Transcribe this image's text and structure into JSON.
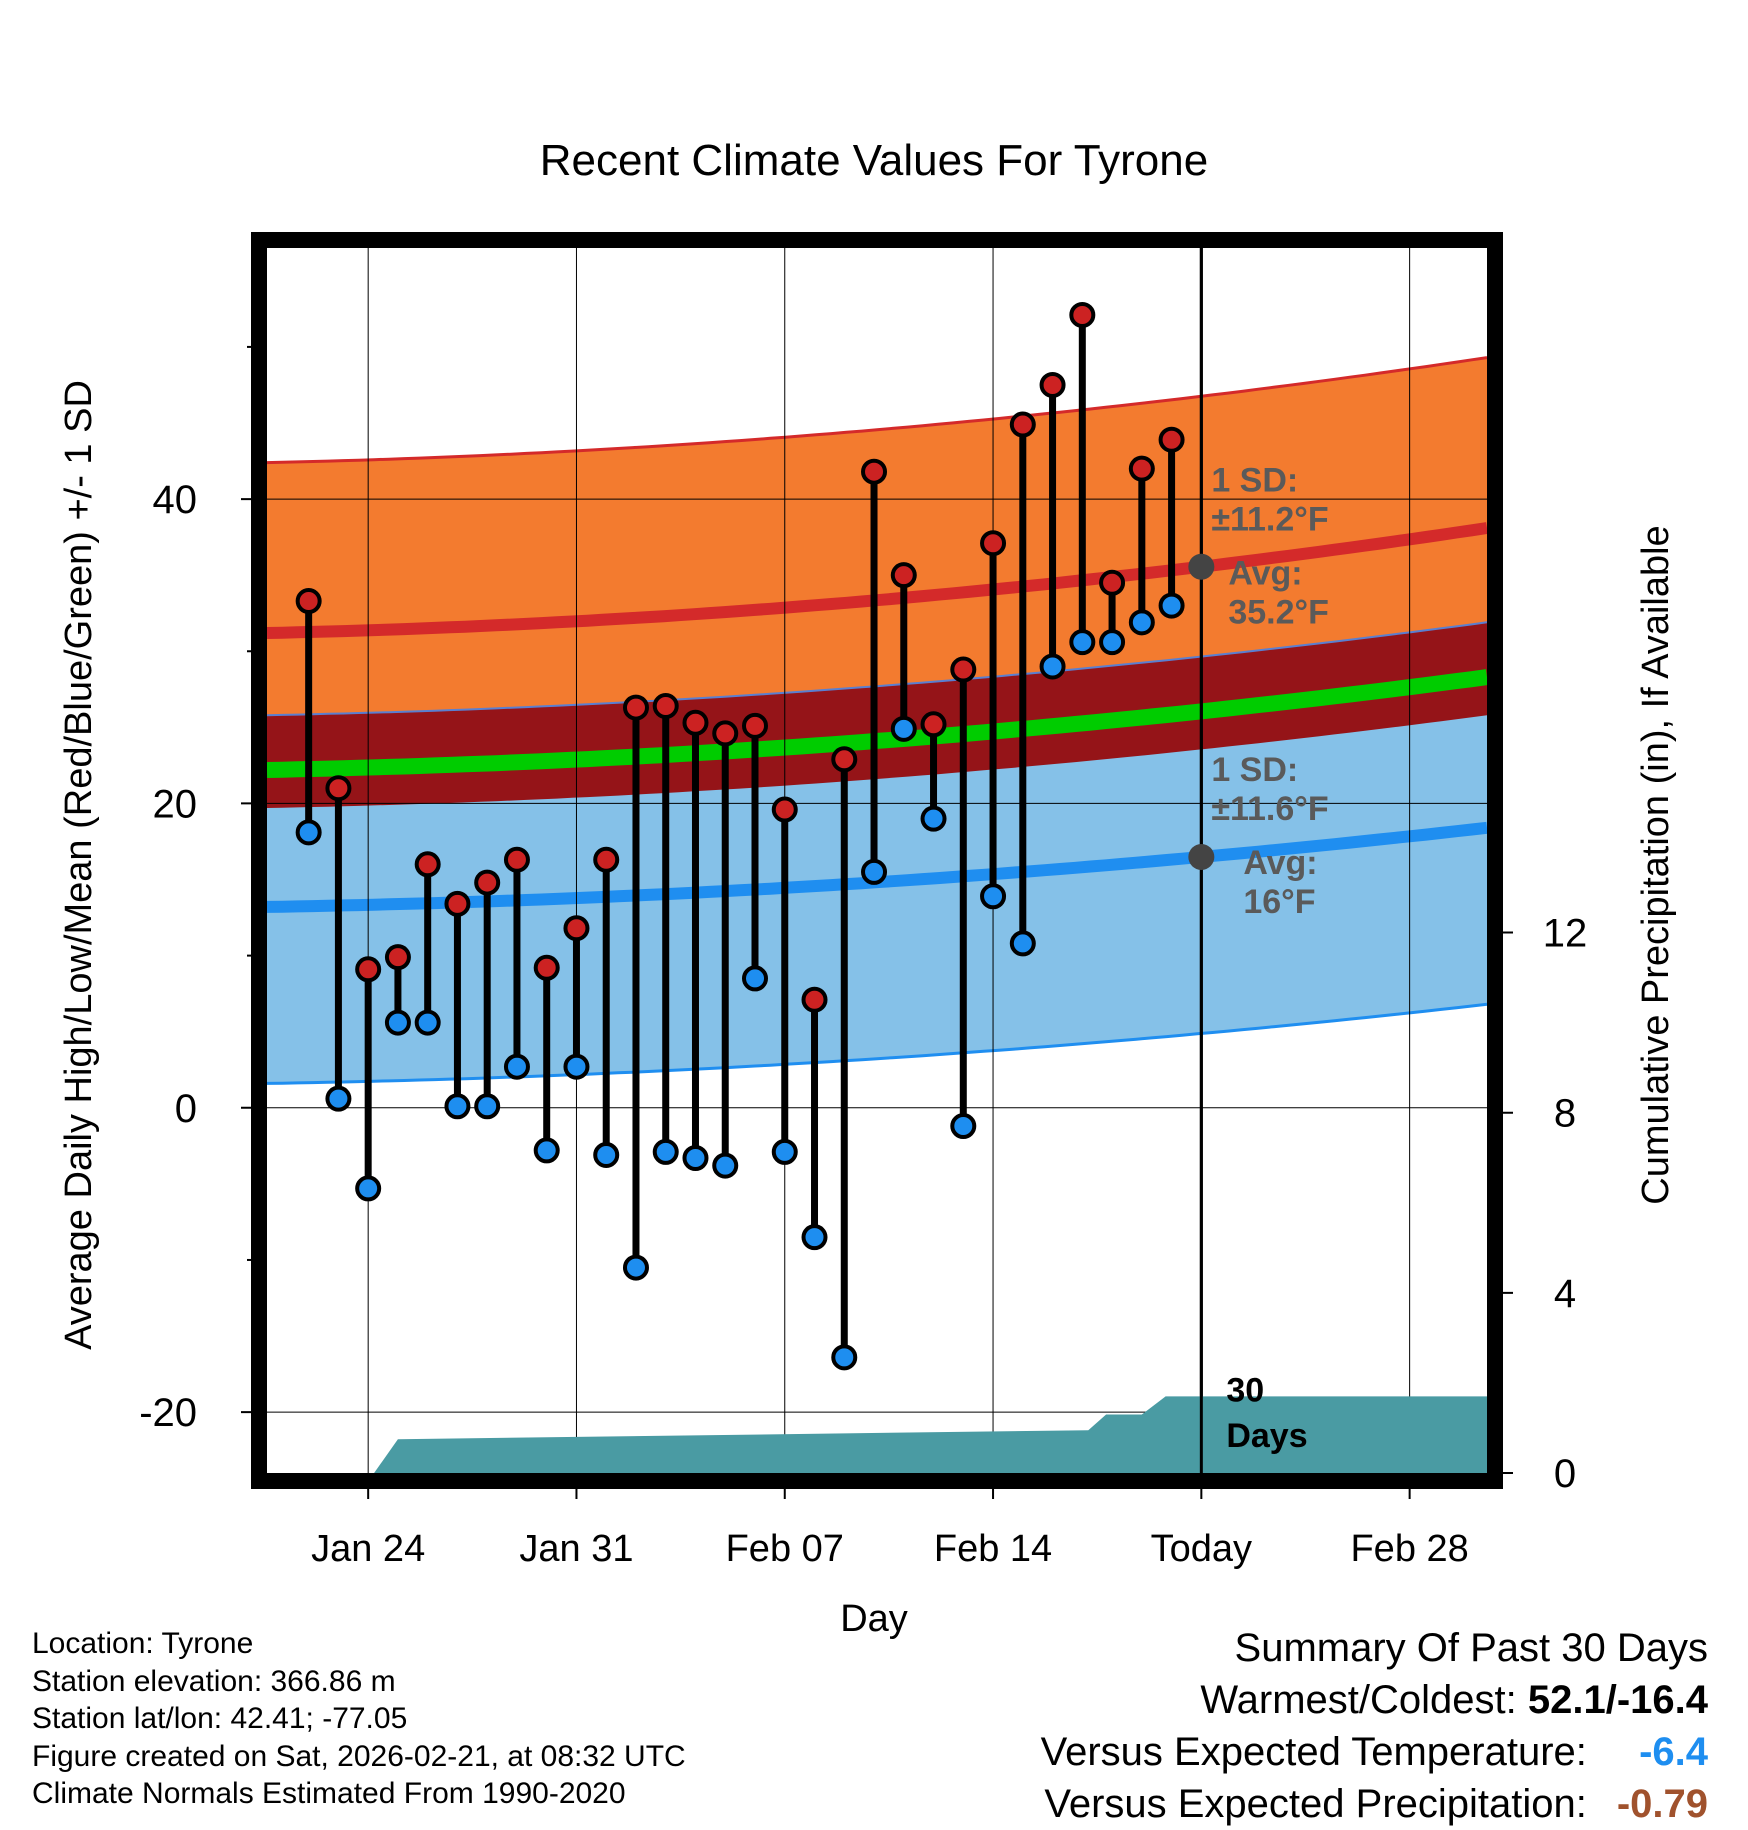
{
  "chart_data": {
    "type": "climate-range",
    "title": "Recent Climate Values For Tyrone",
    "xlabel": "Day",
    "ylabel_left": "Average Daily High/Low/Mean (Red/Blue/Green) +/- 1 SD",
    "ylabel_right": "Cumulative Precipitation (in), If Available",
    "xlim": [
      -3.4,
      37.6
    ],
    "ylim_left": [
      -24,
      56.5
    ],
    "ylim_right": [
      0,
      27.2
    ],
    "x_ticks": [
      {
        "x": 0,
        "label": "Jan 24"
      },
      {
        "x": 7,
        "label": "Jan 31"
      },
      {
        "x": 14,
        "label": "Feb 07"
      },
      {
        "x": 21,
        "label": "Feb 14"
      },
      {
        "x": 28,
        "label": "Today"
      },
      {
        "x": 35,
        "label": "Feb 28"
      }
    ],
    "y_ticks_left": [
      -20,
      0,
      20,
      40
    ],
    "y_minor_left": [
      -10,
      10,
      30,
      50
    ],
    "y_ticks_right": [
      0,
      4,
      8,
      12
    ],
    "today_x": 28,
    "daily": {
      "x": [
        -2,
        -1,
        0,
        1,
        2,
        3,
        4,
        5,
        6,
        7,
        8,
        9,
        10,
        11,
        12,
        13,
        14,
        15,
        16,
        17,
        18,
        19,
        20,
        21,
        22,
        23,
        24,
        25,
        26,
        27
      ],
      "high": [
        33.3,
        21.0,
        9.1,
        9.9,
        16.0,
        13.4,
        14.8,
        16.3,
        9.2,
        11.8,
        16.3,
        26.3,
        26.4,
        25.3,
        24.6,
        25.1,
        19.6,
        7.1,
        22.9,
        41.8,
        35.0,
        25.2,
        28.8,
        37.1,
        44.9,
        47.5,
        52.1,
        34.5,
        42.0,
        43.9
      ],
      "low": [
        18.1,
        0.6,
        -5.3,
        5.6,
        5.6,
        0.1,
        0.1,
        2.7,
        -2.8,
        2.7,
        -3.1,
        -10.5,
        -2.9,
        -3.3,
        -3.8,
        8.5,
        -2.9,
        -8.5,
        -16.4,
        15.5,
        24.9,
        19.0,
        -1.2,
        13.9,
        10.8,
        29.0,
        30.6,
        30.6,
        31.9,
        33.0
      ]
    },
    "normal_high": {
      "start": 31.2,
      "end": 38.1
    },
    "normal_low": {
      "start": 13.2,
      "end": 18.4
    },
    "normal_mean": {
      "start": 22.2,
      "end": 28.3
    },
    "sd_high": 11.2,
    "sd_low": 11.6,
    "precip_cumulative": {
      "x": [
        0.2,
        1.0,
        24.2,
        24.8,
        26.0,
        26.8,
        37.6
      ],
      "y": [
        0,
        0.75,
        0.95,
        1.3,
        1.3,
        1.7,
        1.7
      ]
    },
    "annotations": {
      "high": {
        "line1": "1 SD:",
        "line2": "±11.2°F",
        "avg_label": "Avg:",
        "avg_value": "35.2°F"
      },
      "low": {
        "line1": "1 SD:",
        "line2": "±11.6°F",
        "avg_label": "Avg:",
        "avg_value": "16°F"
      },
      "precip": {
        "line1": "30",
        "line2": "Days"
      }
    },
    "colors": {
      "high_band": "#f37b2f",
      "high_line": "#d42a2a",
      "low_band": "#85c1e8",
      "low_line": "#1f8ef0",
      "mean_band": "#951418",
      "mean_line": "#00cc00",
      "precip": "#4a9ba3",
      "high_dot": "#cc2222",
      "low_dot": "#1e8ef0",
      "annotation": "#5a5a5a",
      "grid": "#000000"
    }
  },
  "footer": {
    "location": "Location: Tyrone",
    "elevation": "Station elevation: 366.86 m",
    "latlon": "Station lat/lon: 42.41; -77.05",
    "created": "Figure created on Sat, 2026-02-21, at 08:32 UTC",
    "normals": "Climate Normals Estimated From 1990-2020"
  },
  "summary": {
    "heading": "Summary Of Past 30 Days",
    "warm_cold_label": "Warmest/Coldest:",
    "warm_cold_value": "52.1/-16.4",
    "temp_label": "Versus Expected Temperature:",
    "temp_value": "-6.4",
    "temp_color": "#1e8ef0",
    "precip_label": "Versus Expected Precipitation:",
    "precip_value": "-0.79",
    "precip_color": "#a0522d"
  }
}
